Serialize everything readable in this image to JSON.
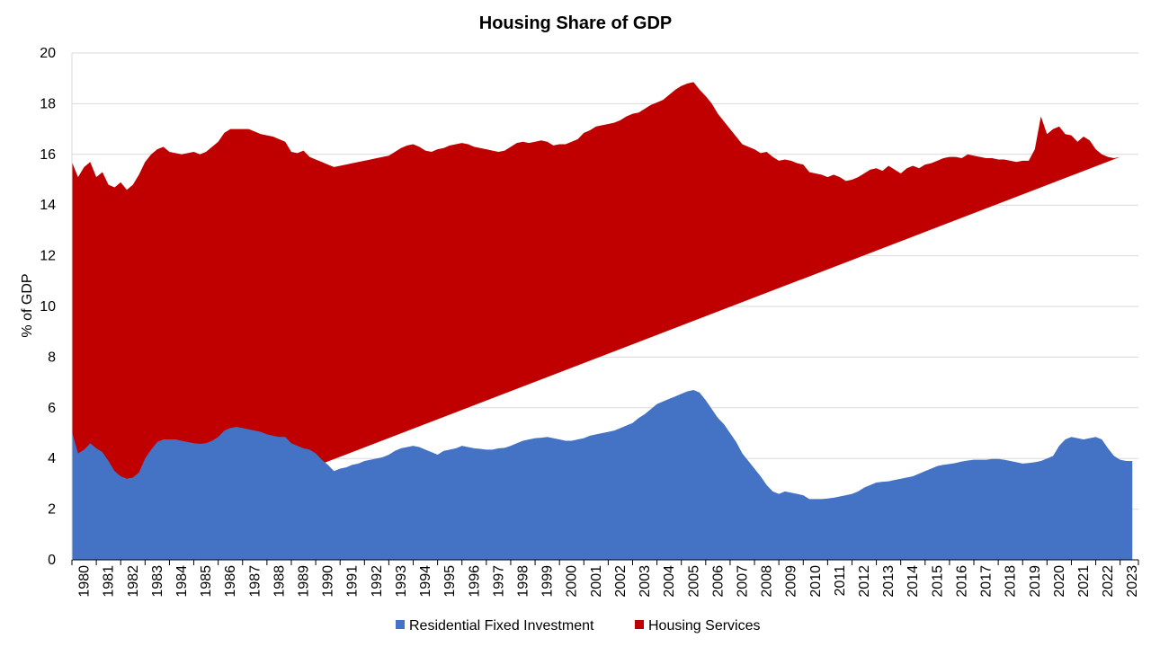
{
  "chart_data": {
    "type": "area",
    "title": "Housing Share of GDP",
    "ylabel": "% of GDP",
    "xlabel": "",
    "ylim": [
      0,
      20
    ],
    "yticks": [
      0,
      2,
      4,
      6,
      8,
      10,
      12,
      14,
      16,
      18,
      20
    ],
    "xlim": [
      1980,
      2023.75
    ],
    "xticks": [
      1980,
      1981,
      1982,
      1983,
      1984,
      1985,
      1986,
      1987,
      1988,
      1989,
      1990,
      1991,
      1992,
      1993,
      1994,
      1995,
      1996,
      1997,
      1998,
      1999,
      2000,
      2001,
      2002,
      2003,
      2004,
      2005,
      2006,
      2007,
      2008,
      2009,
      2010,
      2011,
      2012,
      2013,
      2014,
      2015,
      2016,
      2017,
      2018,
      2019,
      2020,
      2021,
      2022,
      2023
    ],
    "grid": true,
    "legend_position": "bottom",
    "stacked": true,
    "x": [
      1980.0,
      1980.25,
      1980.5,
      1980.75,
      1981.0,
      1981.25,
      1981.5,
      1981.75,
      1982.0,
      1982.25,
      1982.5,
      1982.75,
      1983.0,
      1983.25,
      1983.5,
      1983.75,
      1984.0,
      1984.25,
      1984.5,
      1984.75,
      1985.0,
      1985.25,
      1985.5,
      1985.75,
      1986.0,
      1986.25,
      1986.5,
      1986.75,
      1987.0,
      1987.25,
      1987.5,
      1987.75,
      1988.0,
      1988.25,
      1988.5,
      1988.75,
      1989.0,
      1989.25,
      1989.5,
      1989.75,
      1990.0,
      1990.25,
      1990.5,
      1990.75,
      1991.0,
      1991.25,
      1991.5,
      1991.75,
      1992.0,
      1992.25,
      1992.5,
      1992.75,
      1993.0,
      1993.25,
      1993.5,
      1993.75,
      1994.0,
      1994.25,
      1994.5,
      1994.75,
      1995.0,
      1995.25,
      1995.5,
      1995.75,
      1996.0,
      1996.25,
      1996.5,
      1996.75,
      1997.0,
      1997.25,
      1997.5,
      1997.75,
      1998.0,
      1998.25,
      1998.5,
      1998.75,
      1999.0,
      1999.25,
      1999.5,
      1999.75,
      2000.0,
      2000.25,
      2000.5,
      2000.75,
      2001.0,
      2001.25,
      2001.5,
      2001.75,
      2002.0,
      2002.25,
      2002.5,
      2002.75,
      2003.0,
      2003.25,
      2003.5,
      2003.75,
      2004.0,
      2004.25,
      2004.5,
      2004.75,
      2005.0,
      2005.25,
      2005.5,
      2005.75,
      2006.0,
      2006.25,
      2006.5,
      2006.75,
      2007.0,
      2007.25,
      2007.5,
      2007.75,
      2008.0,
      2008.25,
      2008.5,
      2008.75,
      2009.0,
      2009.25,
      2009.5,
      2009.75,
      2010.0,
      2010.25,
      2010.5,
      2010.75,
      2011.0,
      2011.25,
      2011.5,
      2011.75,
      2012.0,
      2012.25,
      2012.5,
      2012.75,
      2013.0,
      2013.25,
      2013.5,
      2013.75,
      2014.0,
      2014.25,
      2014.5,
      2014.75,
      2015.0,
      2015.25,
      2015.5,
      2015.75,
      2016.0,
      2016.25,
      2016.5,
      2016.75,
      2017.0,
      2017.25,
      2017.5,
      2017.75,
      2018.0,
      2018.25,
      2018.5,
      2018.75,
      2019.0,
      2019.25,
      2019.5,
      2019.75,
      2020.0,
      2020.25,
      2020.5,
      2020.75,
      2021.0,
      2021.25,
      2021.5,
      2021.75,
      2022.0,
      2022.25,
      2022.5,
      2022.75,
      2023.0,
      2023.25,
      2023.5
    ],
    "series": [
      {
        "name": "Residential Fixed Investment",
        "color": "#4472c4",
        "values": [
          5.05,
          4.2,
          4.35,
          4.6,
          4.4,
          4.25,
          3.9,
          3.5,
          3.3,
          3.2,
          3.25,
          3.45,
          4.0,
          4.35,
          4.65,
          4.75,
          4.75,
          4.75,
          4.7,
          4.65,
          4.6,
          4.58,
          4.6,
          4.7,
          4.85,
          5.1,
          5.2,
          5.25,
          5.2,
          5.15,
          5.1,
          5.05,
          4.95,
          4.9,
          4.85,
          4.85,
          4.6,
          4.5,
          4.4,
          4.35,
          4.2,
          3.95,
          3.75,
          3.5,
          3.6,
          3.65,
          3.75,
          3.8,
          3.9,
          3.95,
          4.0,
          4.05,
          4.15,
          4.3,
          4.4,
          4.45,
          4.5,
          4.45,
          4.35,
          4.25,
          4.15,
          4.3,
          4.35,
          4.4,
          4.5,
          4.45,
          4.4,
          4.38,
          4.35,
          4.35,
          4.4,
          4.42,
          4.5,
          4.6,
          4.7,
          4.75,
          4.8,
          4.82,
          4.85,
          4.8,
          4.75,
          4.7,
          4.7,
          4.75,
          4.8,
          4.9,
          4.95,
          5.0,
          5.05,
          5.1,
          5.2,
          5.3,
          5.4,
          5.6,
          5.75,
          5.95,
          6.15,
          6.25,
          6.35,
          6.45,
          6.55,
          6.65,
          6.7,
          6.6,
          6.3,
          5.95,
          5.6,
          5.35,
          5.0,
          4.65,
          4.2,
          3.9,
          3.6,
          3.3,
          2.95,
          2.7,
          2.6,
          2.7,
          2.65,
          2.6,
          2.55,
          2.4,
          2.4,
          2.4,
          2.42,
          2.45,
          2.5,
          2.55,
          2.6,
          2.7,
          2.85,
          2.95,
          3.05,
          3.08,
          3.1,
          3.15,
          3.2,
          3.25,
          3.3,
          3.4,
          3.5,
          3.6,
          3.7,
          3.75,
          3.78,
          3.82,
          3.88,
          3.92,
          3.95,
          3.95,
          3.95,
          3.98,
          3.98,
          3.95,
          3.9,
          3.85,
          3.8,
          3.82,
          3.85,
          3.9,
          4.0,
          4.1,
          4.5,
          4.75,
          4.85,
          4.8,
          4.75,
          4.8,
          4.85,
          4.75,
          4.4,
          4.1,
          3.95,
          3.9,
          3.9
        ],
        "totals": [
          15.7,
          15.1,
          15.5,
          15.7,
          15.1,
          15.3,
          14.8,
          14.7,
          14.9,
          14.6,
          14.8,
          15.2,
          15.7,
          16.0,
          16.2,
          16.3,
          16.1,
          16.05,
          16.0,
          16.05,
          16.1,
          16.0,
          16.1,
          16.3,
          16.5,
          16.85,
          17.0,
          17.0,
          17.0,
          17.0,
          16.9,
          16.8,
          16.75,
          16.7,
          16.6,
          16.5,
          16.1,
          16.05,
          16.15,
          15.9,
          15.8,
          15.7,
          15.6,
          15.5,
          15.55,
          15.6,
          15.65,
          15.7,
          15.75,
          15.8,
          15.85,
          15.9,
          15.95,
          16.1,
          16.25,
          16.35,
          16.4,
          16.3,
          16.15,
          16.1,
          16.2,
          16.25,
          16.35,
          16.4,
          16.45,
          16.4,
          16.3,
          16.25,
          16.2,
          16.15,
          16.1,
          16.15,
          16.3,
          16.45,
          16.5,
          16.45,
          16.5,
          16.55,
          16.5,
          16.35,
          16.4,
          16.4,
          16.5,
          16.6,
          16.85,
          16.95,
          17.1,
          17.15,
          17.2,
          17.25,
          17.35,
          17.5,
          17.6,
          17.65,
          17.8,
          17.95,
          18.05,
          18.15,
          18.35,
          18.55,
          18.7,
          18.8,
          18.85,
          18.55,
          18.3,
          18.0,
          17.6,
          17.3,
          17.0,
          16.7,
          16.4,
          16.3,
          16.2,
          16.05,
          16.1,
          15.9,
          15.75,
          15.8,
          15.75,
          15.65,
          15.6,
          15.3,
          15.25,
          15.2,
          15.1,
          15.2,
          15.1,
          14.95,
          15.0,
          15.1,
          15.25,
          15.4,
          15.45,
          15.35,
          15.55,
          15.4,
          15.25,
          15.45,
          15.55,
          15.45,
          15.6,
          15.65,
          15.75,
          15.85,
          15.9,
          15.9,
          15.85,
          16.0,
          15.95,
          15.9,
          15.85,
          15.85,
          15.8,
          15.8,
          15.75,
          15.7,
          15.75,
          15.75,
          16.2,
          17.5,
          16.8,
          17.0,
          17.1,
          16.8,
          16.75,
          16.5,
          16.7,
          16.55,
          16.2,
          16.0,
          15.9,
          15.85,
          15.9
        ]
      },
      {
        "name": "Housing Services",
        "color": "#c00000"
      }
    ]
  }
}
